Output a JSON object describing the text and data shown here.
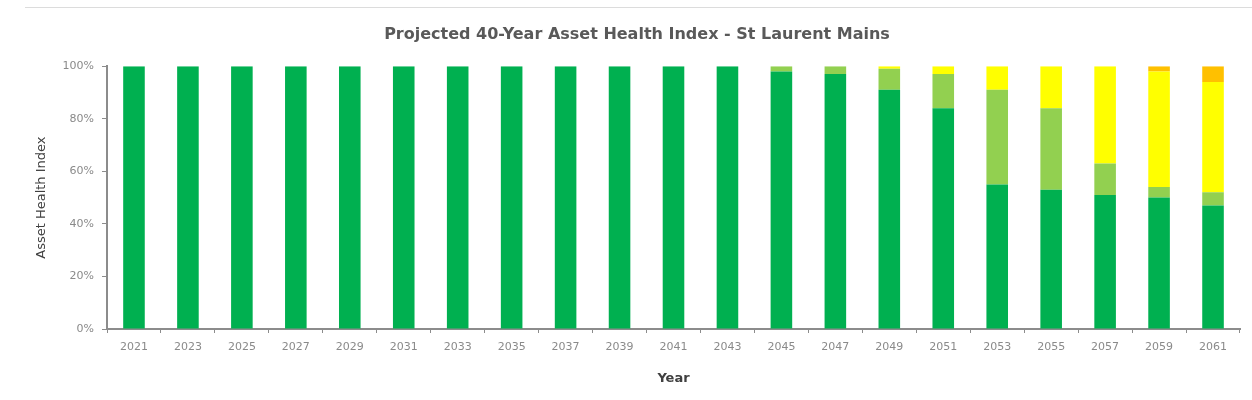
{
  "chart_data": {
    "type": "bar",
    "title": "Projected 40-Year Asset Health Index - St Laurent Mains",
    "xlabel": "Year",
    "ylabel": "Asset Health Index",
    "categories": [
      "2021",
      "2023",
      "2025",
      "2027",
      "2029",
      "2031",
      "2033",
      "2035",
      "2037",
      "2039",
      "2041",
      "2043",
      "2045",
      "2047",
      "2049",
      "2051",
      "2053",
      "2055",
      "2057",
      "2059",
      "2061"
    ],
    "stacked": true,
    "series": [
      {
        "color": "#00b050",
        "values": [
          100,
          100,
          100,
          100,
          100,
          100,
          100,
          100,
          100,
          100,
          100,
          100,
          98,
          97,
          91,
          84,
          55,
          53,
          51,
          50,
          47
        ]
      },
      {
        "color": "#92d050",
        "values": [
          0,
          0,
          0,
          0,
          0,
          0,
          0,
          0,
          0,
          0,
          0,
          0,
          2,
          3,
          8,
          13,
          36,
          31,
          12,
          4,
          5
        ]
      },
      {
        "color": "#ffff00",
        "values": [
          0,
          0,
          0,
          0,
          0,
          0,
          0,
          0,
          0,
          0,
          0,
          0,
          0,
          0,
          1,
          3,
          9,
          16,
          37,
          44,
          42
        ]
      },
      {
        "color": "#ffc000",
        "values": [
          0,
          0,
          0,
          0,
          0,
          0,
          0,
          0,
          0,
          0,
          0,
          0,
          0,
          0,
          0,
          0,
          0,
          0,
          0,
          2,
          6
        ]
      }
    ],
    "ylim": [
      0,
      100
    ],
    "yticks": [
      {
        "value": 0,
        "label": "0%"
      },
      {
        "value": 20,
        "label": "20%"
      },
      {
        "value": 40,
        "label": "40%"
      },
      {
        "value": 60,
        "label": "60%"
      },
      {
        "value": 80,
        "label": "80%"
      },
      {
        "value": 100,
        "label": "100%"
      }
    ]
  }
}
